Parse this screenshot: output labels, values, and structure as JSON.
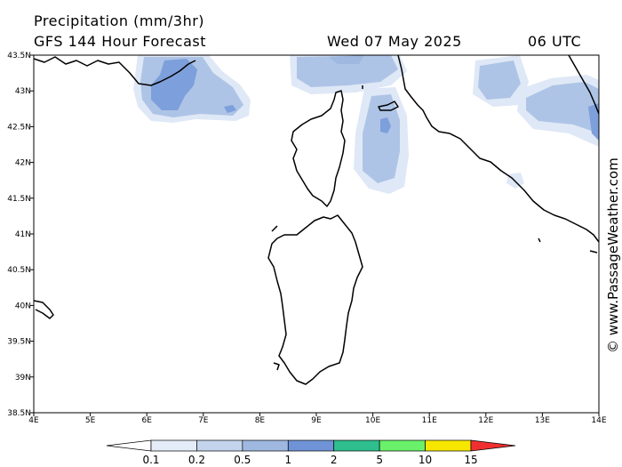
{
  "header": {
    "title": "Precipitation (mm/3hr)",
    "subtitle": "GFS 144 Hour Forecast",
    "date": "Wed 07 May 2025",
    "time": "06 UTC"
  },
  "credit": "© www.PassageWeather.com",
  "axes": {
    "lon_labels": [
      "4E",
      "5E",
      "6E",
      "7E",
      "8E",
      "9E",
      "10E",
      "11E",
      "12E",
      "13E",
      "14E"
    ],
    "lat_labels": [
      "43.5N",
      "43N",
      "42.5N",
      "42N",
      "41.5N",
      "41N",
      "40.5N",
      "40N",
      "39.5N",
      "39N",
      "38.5N"
    ]
  },
  "legend": {
    "labels": [
      "0.1",
      "0.2",
      "0.5",
      "1",
      "2",
      "5",
      "10",
      "15"
    ],
    "colors": [
      "#e4ecf7",
      "#c3d4ec",
      "#9fb8e0",
      "#6f93d6",
      "#2fbf8f",
      "#6af06a",
      "#f7e600",
      "#f79a00",
      "#f03030"
    ]
  },
  "colors": {
    "precip_light": "#dfe8f6",
    "precip_mid": "#aec4e6",
    "precip_heavy": "#7d9fdb",
    "coast": "#000000",
    "frame": "#000000"
  }
}
